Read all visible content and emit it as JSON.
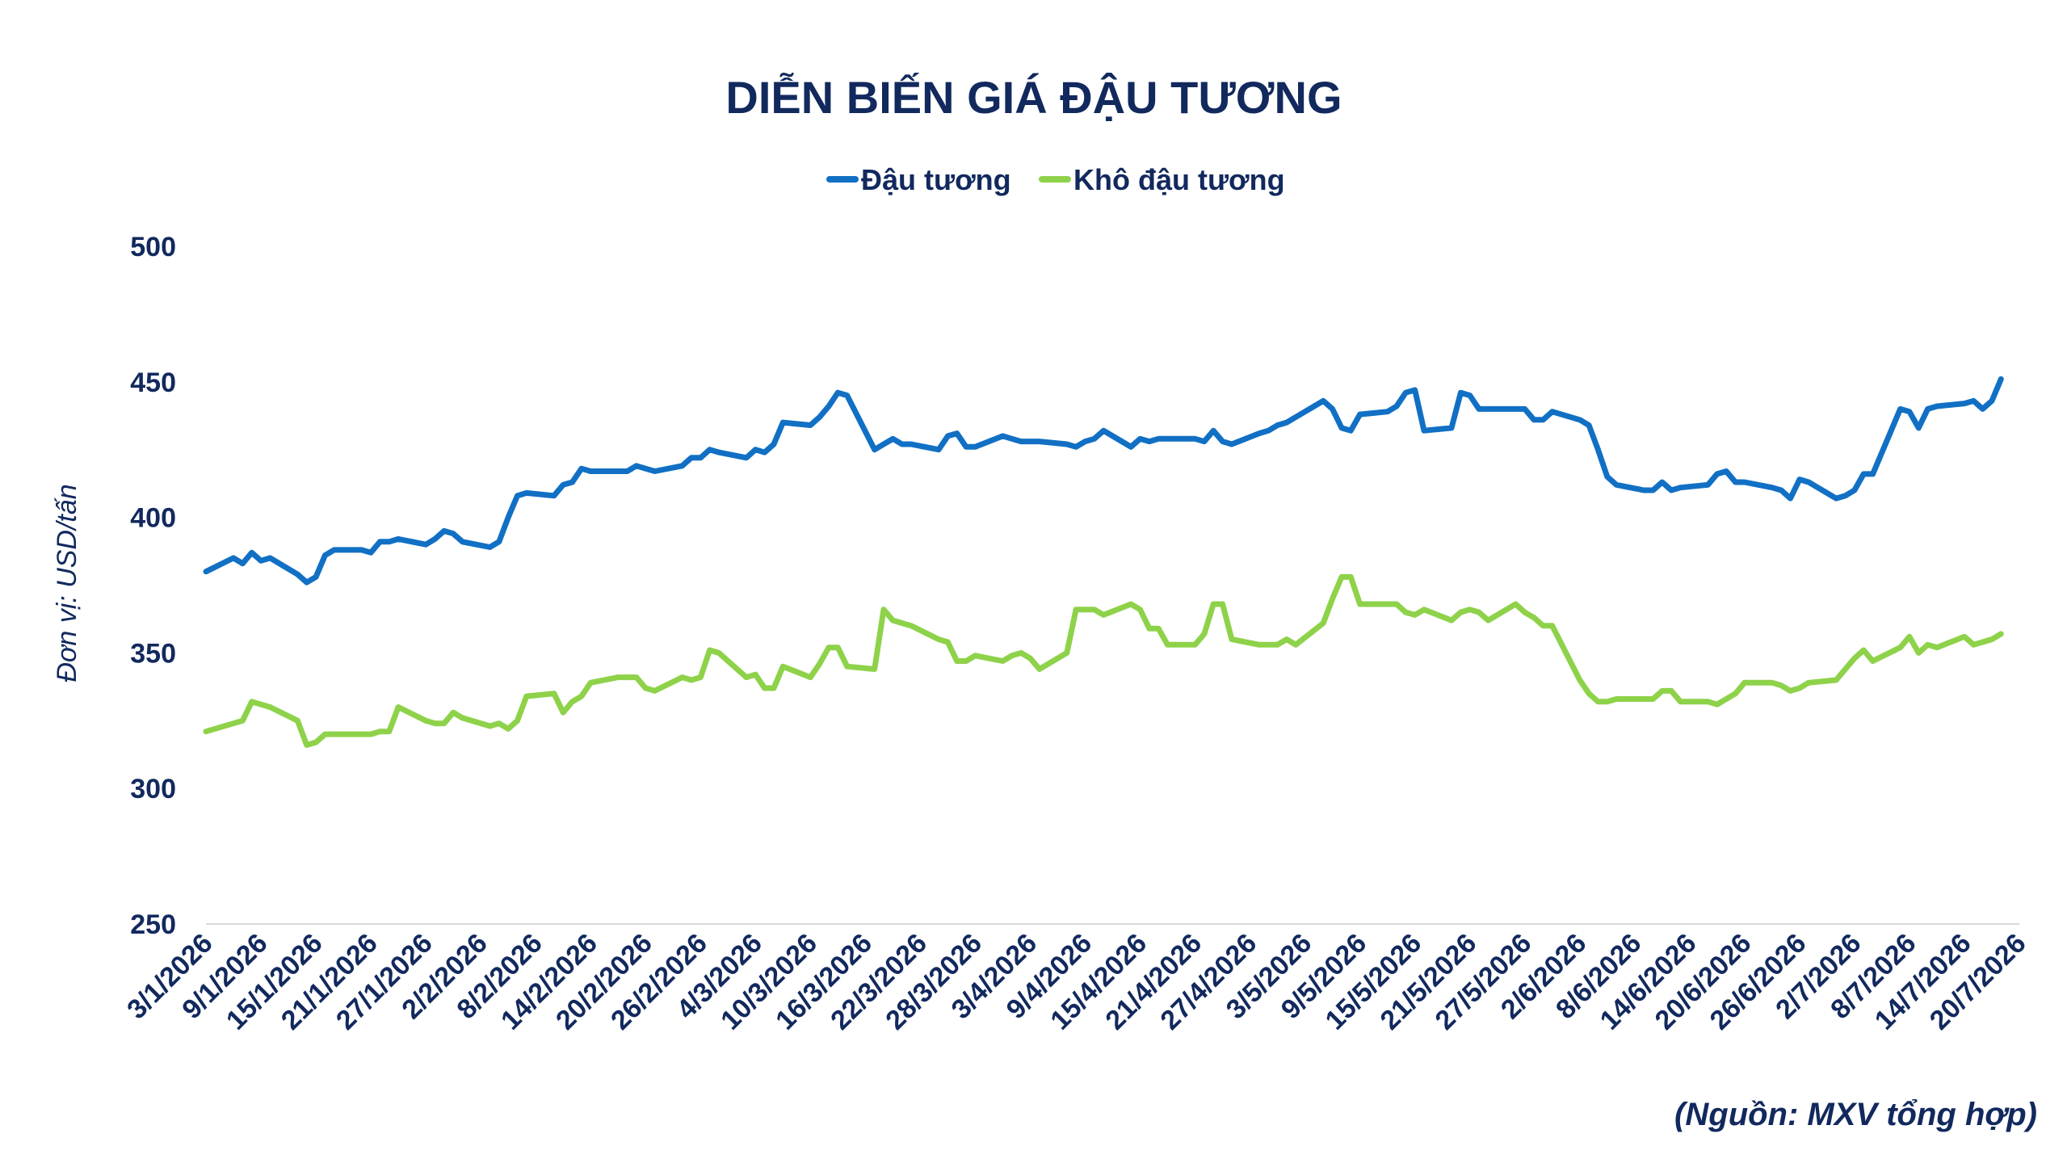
{
  "chart_data": {
    "type": "line",
    "title": "DIỄN BIẾN GIÁ ĐẬU TƯƠNG",
    "ylabel": "Đơn vị: USD/tấn",
    "source": "(Nguồn: MXV tổng hợp)",
    "ylim": [
      250,
      500
    ],
    "yticks": [
      "250",
      "300",
      "350",
      "400",
      "450",
      "500"
    ],
    "grid": false,
    "legend_position": "top-center",
    "x_dates": [
      "2026-01-03",
      "2026-01-06",
      "2026-01-07",
      "2026-01-08",
      "2026-01-09",
      "2026-01-10",
      "2026-01-13",
      "2026-01-14",
      "2026-01-15",
      "2026-01-16",
      "2026-01-17",
      "2026-01-20",
      "2026-01-21",
      "2026-01-22",
      "2026-01-23",
      "2026-01-24",
      "2026-01-27",
      "2026-01-28",
      "2026-01-29",
      "2026-01-30",
      "2026-01-31",
      "2026-02-03",
      "2026-02-04",
      "2026-02-05",
      "2026-02-06",
      "2026-02-07",
      "2026-02-10",
      "2026-02-11",
      "2026-02-12",
      "2026-02-13",
      "2026-02-14",
      "2026-02-17",
      "2026-02-18",
      "2026-02-19",
      "2026-02-20",
      "2026-02-21",
      "2026-02-24",
      "2026-02-25",
      "2026-02-26",
      "2026-02-27",
      "2026-02-28",
      "2026-03-03",
      "2026-03-04",
      "2026-03-05",
      "2026-03-06",
      "2026-03-07",
      "2026-03-10",
      "2026-03-11",
      "2026-03-12",
      "2026-03-13",
      "2026-03-14",
      "2026-03-17",
      "2026-03-18",
      "2026-03-19",
      "2026-03-20",
      "2026-03-21",
      "2026-03-24",
      "2026-03-25",
      "2026-03-26",
      "2026-03-27",
      "2026-03-28",
      "2026-03-31",
      "2026-04-01",
      "2026-04-02",
      "2026-04-03",
      "2026-04-04",
      "2026-04-07",
      "2026-04-08",
      "2026-04-09",
      "2026-04-10",
      "2026-04-11",
      "2026-04-14",
      "2026-04-15",
      "2026-04-16",
      "2026-04-17",
      "2026-04-18",
      "2026-04-21",
      "2026-04-22",
      "2026-04-23",
      "2026-04-24",
      "2026-04-25",
      "2026-04-28",
      "2026-04-29",
      "2026-04-30",
      "2026-05-01",
      "2026-05-02",
      "2026-05-05",
      "2026-05-06",
      "2026-05-07",
      "2026-05-08",
      "2026-05-09",
      "2026-05-12",
      "2026-05-13",
      "2026-05-14",
      "2026-05-15",
      "2026-05-16",
      "2026-05-19",
      "2026-05-20",
      "2026-05-21",
      "2026-05-22",
      "2026-05-23",
      "2026-05-26",
      "2026-05-27",
      "2026-05-28",
      "2026-05-29",
      "2026-05-30",
      "2026-06-02",
      "2026-06-03",
      "2026-06-04",
      "2026-06-05",
      "2026-06-06",
      "2026-06-09",
      "2026-06-10",
      "2026-06-11",
      "2026-06-12",
      "2026-06-13",
      "2026-06-16",
      "2026-06-17",
      "2026-06-18",
      "2026-06-19",
      "2026-06-20",
      "2026-06-23",
      "2026-06-24",
      "2026-06-25",
      "2026-06-26",
      "2026-06-27",
      "2026-06-30",
      "2026-07-01",
      "2026-07-02",
      "2026-07-03",
      "2026-07-04",
      "2026-07-07",
      "2026-07-08",
      "2026-07-09",
      "2026-07-10",
      "2026-07-11",
      "2026-07-14",
      "2026-07-15",
      "2026-07-16",
      "2026-07-17",
      "2026-07-18",
      "2026-07-20"
    ],
    "x_tick_labels": [
      "3/1/2026",
      "9/1/2026",
      "15/1/2026",
      "21/1/2026",
      "27/1/2026",
      "2/2/2026",
      "8/2/2026",
      "14/2/2026",
      "20/2/2026",
      "26/2/2026",
      "4/3/2026",
      "10/3/2026",
      "16/3/2026",
      "22/3/2026",
      "28/3/2026",
      "3/4/2026",
      "9/4/2026",
      "15/4/2026",
      "21/4/2026",
      "27/4/2026",
      "3/5/2026",
      "9/5/2026",
      "15/5/2026",
      "21/5/2026",
      "27/5/2026",
      "2/6/2026",
      "8/6/2026",
      "14/6/2026",
      "20/6/2026",
      "26/6/2026",
      "2/7/2026",
      "8/7/2026",
      "14/7/2026",
      "20/7/2026"
    ],
    "series": [
      {
        "name": "Đậu tương",
        "color": "#1170c4",
        "values": [
          380,
          385,
          383,
          387,
          384,
          385,
          379,
          376,
          378,
          386,
          388,
          388,
          387,
          391,
          391,
          392,
          390,
          392,
          395,
          394,
          391,
          389,
          391,
          400,
          408,
          409,
          408,
          412,
          413,
          418,
          417,
          417,
          417,
          419,
          418,
          417,
          419,
          422,
          422,
          425,
          424,
          422,
          425,
          424,
          427,
          435,
          434,
          437,
          441,
          446,
          445,
          425,
          427,
          429,
          427,
          427,
          425,
          430,
          431,
          426,
          426,
          430,
          429,
          428,
          428,
          428,
          427,
          426,
          428,
          429,
          432,
          426,
          429,
          428,
          429,
          429,
          429,
          428,
          432,
          428,
          427,
          431,
          432,
          434,
          435,
          437,
          443,
          440,
          433,
          432,
          438,
          439,
          441,
          446,
          447,
          432,
          433,
          446,
          445,
          440,
          440,
          440,
          440,
          436,
          436,
          439,
          436,
          434,
          425,
          415,
          412,
          410,
          410,
          413,
          410,
          411,
          412,
          416,
          417,
          413,
          413,
          411,
          410,
          407,
          414,
          413,
          407,
          408,
          410,
          416,
          416,
          440,
          439,
          433,
          440,
          441,
          442,
          443,
          440,
          443,
          451
        ],
        "line_width": 7
      },
      {
        "name": "Khô đậu tương",
        "color": "#8ed24a",
        "values": [
          321,
          324,
          325,
          332,
          331,
          330,
          325,
          316,
          317,
          320,
          320,
          320,
          320,
          321,
          321,
          330,
          325,
          324,
          324,
          328,
          326,
          323,
          324,
          322,
          325,
          334,
          335,
          328,
          332,
          334,
          339,
          341,
          341,
          341,
          337,
          336,
          341,
          340,
          341,
          351,
          350,
          341,
          342,
          337,
          337,
          345,
          341,
          346,
          352,
          352,
          345,
          344,
          366,
          362,
          361,
          360,
          355,
          354,
          347,
          347,
          349,
          347,
          349,
          350,
          348,
          344,
          350,
          366,
          366,
          366,
          364,
          368,
          366,
          359,
          359,
          353,
          353,
          357,
          368,
          368,
          355,
          353,
          353,
          353,
          355,
          353,
          361,
          370,
          378,
          378,
          368,
          368,
          368,
          365,
          364,
          366,
          362,
          365,
          366,
          365,
          362,
          368,
          365,
          363,
          360,
          360,
          340,
          335,
          332,
          332,
          333,
          333,
          333,
          336,
          336,
          332,
          332,
          331,
          333,
          335,
          339,
          339,
          338,
          336,
          337,
          339,
          340,
          344,
          348,
          351,
          347,
          352,
          356,
          350,
          353,
          352,
          356,
          353,
          354,
          355,
          357
        ],
        "line_width": 7
      }
    ]
  }
}
